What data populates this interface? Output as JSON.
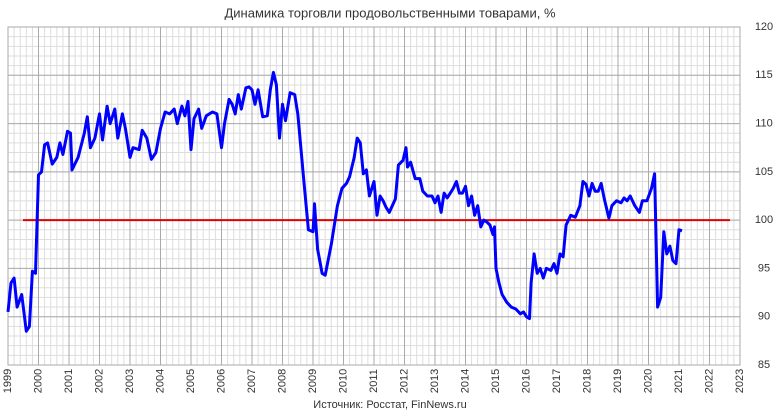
{
  "chart_data": {
    "type": "line",
    "title": "Динамика торговли продовольственными товарами, %",
    "source": "Источник: Росстат, FinNews.ru",
    "x": [
      1999.0,
      1999.1,
      1999.2,
      1999.3,
      1999.45,
      1999.6,
      1999.7,
      1999.8,
      1999.9,
      2000.0,
      2000.1,
      2000.2,
      2000.3,
      2000.45,
      2000.6,
      2000.7,
      2000.8,
      2000.95,
      2001.05,
      2001.1,
      2001.3,
      2001.5,
      2001.6,
      2001.7,
      2001.85,
      2002.0,
      2002.1,
      2002.25,
      2002.35,
      2002.5,
      2002.6,
      2002.75,
      2002.85,
      2003.0,
      2003.1,
      2003.3,
      2003.4,
      2003.55,
      2003.7,
      2003.85,
      2004.0,
      2004.15,
      2004.3,
      2004.45,
      2004.55,
      2004.7,
      2004.8,
      2004.9,
      2005.0,
      2005.1,
      2005.25,
      2005.35,
      2005.5,
      2005.7,
      2005.85,
      2006.0,
      2006.1,
      2006.25,
      2006.35,
      2006.45,
      2006.55,
      2006.65,
      2006.8,
      2006.9,
      2007.0,
      2007.1,
      2007.2,
      2007.35,
      2007.5,
      2007.6,
      2007.7,
      2007.8,
      2007.9,
      2008.0,
      2008.1,
      2008.25,
      2008.4,
      2008.5,
      2008.7,
      2008.85,
      2009.0,
      2009.05,
      2009.15,
      2009.3,
      2009.4,
      2009.6,
      2009.8,
      2009.95,
      2010.1,
      2010.2,
      2010.35,
      2010.45,
      2010.55,
      2010.65,
      2010.75,
      2010.85,
      2011.0,
      2011.1,
      2011.2,
      2011.3,
      2011.4,
      2011.5,
      2011.6,
      2011.7,
      2011.8,
      2011.95,
      2012.05,
      2012.1,
      2012.2,
      2012.35,
      2012.5,
      2012.6,
      2012.75,
      2012.9,
      2013.0,
      2013.1,
      2013.2,
      2013.3,
      2013.4,
      2013.5,
      2013.6,
      2013.7,
      2013.8,
      2013.9,
      2014.0,
      2014.1,
      2014.2,
      2014.3,
      2014.4,
      2014.5,
      2014.6,
      2014.7,
      2014.8,
      2014.9,
      2014.95,
      2015.0,
      2015.1,
      2015.2,
      2015.35,
      2015.5,
      2015.65,
      2015.8,
      2015.9,
      2016.0,
      2016.1,
      2016.15,
      2016.25,
      2016.35,
      2016.45,
      2016.55,
      2016.65,
      2016.8,
      2016.9,
      2017.0,
      2017.1,
      2017.2,
      2017.3,
      2017.45,
      2017.6,
      2017.75,
      2017.85,
      2017.95,
      2018.05,
      2018.15,
      2018.25,
      2018.35,
      2018.45,
      2018.55,
      2018.7,
      2018.8,
      2018.95,
      2019.1,
      2019.2,
      2019.3,
      2019.4,
      2019.55,
      2019.7,
      2019.8,
      2019.95,
      2020.1,
      2020.2,
      2020.3,
      2020.4,
      2020.5,
      2020.6,
      2020.7,
      2020.8,
      2020.9,
      2021.0,
      2021.1
    ],
    "series": [
      {
        "color": "#0000ff",
        "values": [
          90.5,
          93.5,
          94,
          91,
          92.3,
          88.5,
          89,
          94.7,
          94.5,
          104.7,
          105,
          107.8,
          108,
          105.8,
          106.5,
          108,
          106.8,
          109.2,
          109,
          105.2,
          106.5,
          109,
          110.7,
          107.5,
          108.5,
          111,
          108.3,
          111.8,
          110,
          111.5,
          108.5,
          111,
          109.5,
          106.5,
          107.5,
          107.3,
          109.3,
          108.5,
          106.3,
          107,
          109.5,
          111.2,
          111,
          111.5,
          110,
          111.8,
          110.8,
          112.3,
          107.3,
          110.5,
          111.5,
          109.5,
          110.8,
          111.2,
          111,
          107.5,
          110,
          112.5,
          112,
          111,
          113,
          111.5,
          113.7,
          113.8,
          113.5,
          112,
          113.5,
          110.7,
          110.8,
          113.5,
          115.3,
          114,
          108.5,
          112,
          110.3,
          113.2,
          113,
          111,
          104,
          99,
          98.8,
          101.7,
          97,
          94.5,
          94.3,
          97.5,
          101.5,
          103.3,
          103.8,
          104.5,
          106.5,
          108.5,
          108,
          104.8,
          105.2,
          102.5,
          104,
          100.5,
          102.5,
          102,
          101.3,
          100.8,
          101.5,
          102.2,
          105.7,
          106.2,
          107.5,
          105.5,
          106,
          104.3,
          104.3,
          103,
          102.5,
          102.5,
          101.8,
          102.5,
          100.8,
          102.8,
          102.3,
          102.8,
          103.3,
          104,
          102.8,
          102.8,
          103.5,
          101.5,
          102.5,
          100.5,
          101.5,
          99.3,
          100,
          99.8,
          99.5,
          98.5,
          99.3,
          95,
          93.5,
          92.3,
          91.5,
          91,
          90.8,
          90.3,
          90.5,
          90,
          89.8,
          93.5,
          96.5,
          94.5,
          95,
          94,
          95,
          94.8,
          95.5,
          94.5,
          96.5,
          96.2,
          99.5,
          100.5,
          100.3,
          101.5,
          104,
          103.7,
          102.5,
          103.8,
          103,
          103,
          103.8,
          102.2,
          100.2,
          101.5,
          102,
          101.8,
          102.3,
          102,
          102.5,
          101.5,
          100.8,
          102,
          102,
          103.3,
          104.8,
          91,
          92,
          98.8,
          96.5,
          97.3,
          95.8,
          95.5,
          99,
          98.9
        ]
      }
    ],
    "reference_line": {
      "value": 100,
      "color": "#e00000"
    },
    "xlim": [
      1999,
      2023
    ],
    "xticks": [
      1999,
      2000,
      2001,
      2002,
      2003,
      2004,
      2005,
      2006,
      2007,
      2008,
      2009,
      2010,
      2011,
      2012,
      2013,
      2014,
      2015,
      2016,
      2017,
      2018,
      2019,
      2020,
      2021,
      2022,
      2023
    ],
    "ylim": [
      85,
      120
    ],
    "yticks": [
      85,
      90,
      95,
      100,
      105,
      110,
      115,
      120
    ],
    "grid": true,
    "minor_grid": true,
    "y_axis_side": "right"
  }
}
